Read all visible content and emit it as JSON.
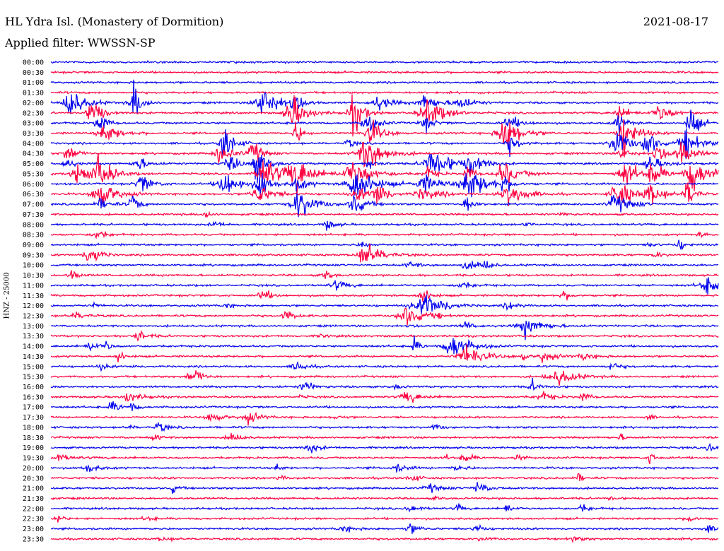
{
  "header": {
    "station": "HL Ydra Isl. (Monastery of Dormition)",
    "date": "2021-08-17",
    "filter": "Applied filter: WWSSN-SP"
  },
  "chart_data": {
    "type": "line",
    "subtype": "helicorder",
    "title": "HL Ydra Isl. (Monastery of Dormition)",
    "date": "2021-08-17",
    "filter": "WWSSN-SP",
    "ylabel": "HNZ - 25000",
    "row_interval_minutes": 30,
    "rows": [
      "00:00",
      "00:30",
      "01:00",
      "01:30",
      "02:00",
      "02:30",
      "03:00",
      "03:30",
      "04:00",
      "04:30",
      "05:00",
      "05:30",
      "06:00",
      "06:30",
      "07:00",
      "07:30",
      "08:00",
      "08:30",
      "09:00",
      "09:30",
      "10:00",
      "10:30",
      "11:00",
      "11:30",
      "12:00",
      "12:30",
      "13:00",
      "13:30",
      "14:00",
      "14:30",
      "15:00",
      "15:30",
      "16:00",
      "16:30",
      "17:00",
      "17:30",
      "18:00",
      "18:30",
      "19:00",
      "19:30",
      "20:00",
      "20:30",
      "21:00",
      "21:30",
      "22:00",
      "22:30",
      "23:00",
      "23:30"
    ],
    "colors": {
      "even_rows": "#0000ee",
      "odd_rows": "#ff0040"
    },
    "grid": false,
    "legend": "none"
  }
}
